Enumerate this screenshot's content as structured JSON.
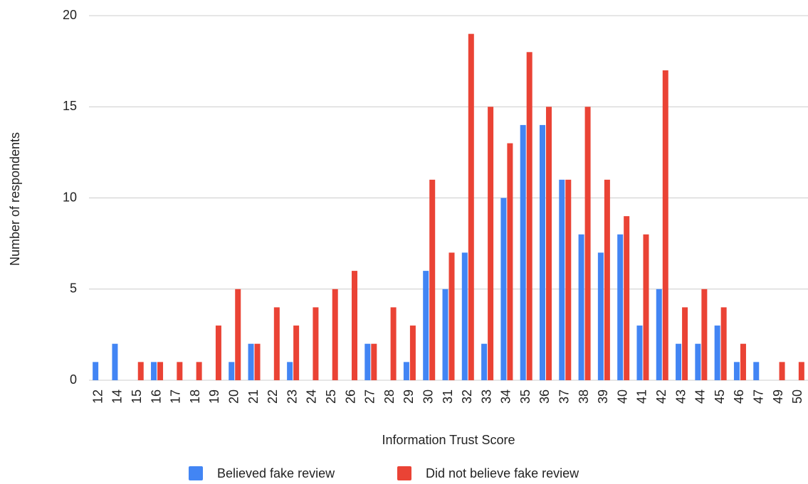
{
  "chart_data": {
    "type": "bar",
    "x_label": "Information Trust Score",
    "y_label": "Number of respondents",
    "categories": [
      "12",
      "14",
      "15",
      "16",
      "17",
      "18",
      "19",
      "20",
      "21",
      "22",
      "23",
      "24",
      "25",
      "26",
      "27",
      "28",
      "29",
      "30",
      "31",
      "32",
      "33",
      "34",
      "35",
      "36",
      "37",
      "38",
      "39",
      "40",
      "41",
      "42",
      "43",
      "44",
      "45",
      "46",
      "47",
      "49",
      "50"
    ],
    "series": [
      {
        "name": "Believed fake review",
        "color": "#4285f4",
        "values": [
          1,
          2,
          0,
          1,
          0,
          0,
          0,
          1,
          2,
          0,
          1,
          0,
          0,
          0,
          2,
          0,
          1,
          6,
          5,
          7,
          2,
          10,
          14,
          14,
          11,
          8,
          7,
          8,
          3,
          5,
          2,
          2,
          3,
          1,
          1,
          0,
          0
        ]
      },
      {
        "name": "Did not believe fake review",
        "color": "#ea4335",
        "values": [
          0,
          0,
          1,
          1,
          1,
          1,
          3,
          5,
          2,
          4,
          3,
          4,
          5,
          6,
          2,
          4,
          3,
          11,
          7,
          19,
          15,
          13,
          18,
          15,
          11,
          15,
          11,
          9,
          8,
          17,
          4,
          5,
          4,
          2,
          0,
          1,
          1
        ]
      }
    ],
    "ylim": [
      0,
      20
    ],
    "yticks": [
      0,
      5,
      10,
      15,
      20
    ],
    "grid": true,
    "legend": "bottom"
  }
}
